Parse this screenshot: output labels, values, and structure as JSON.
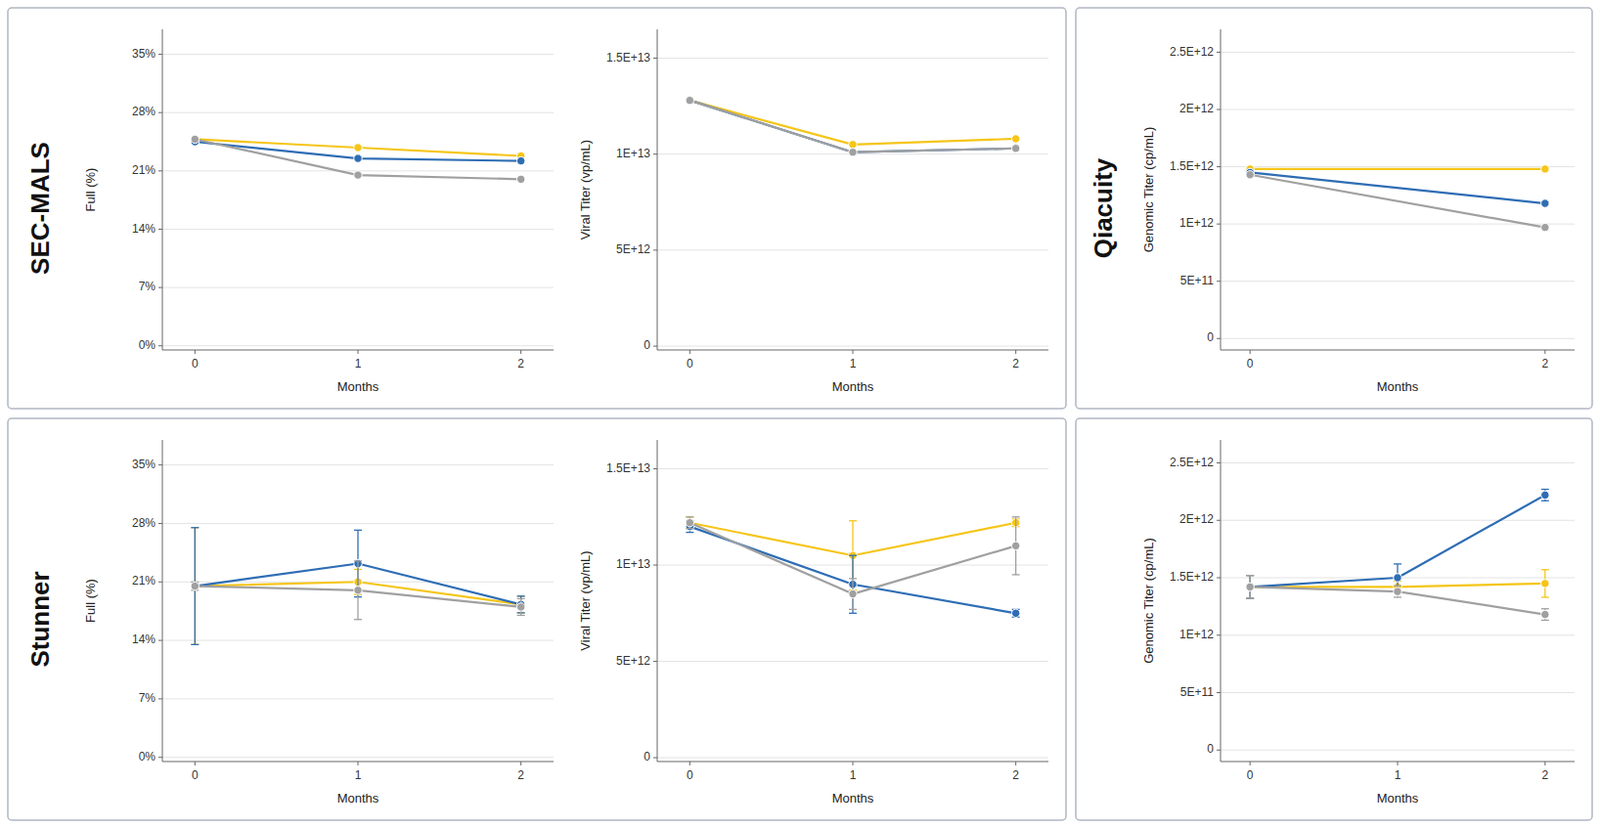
{
  "chart_data": [
    {
      "type": "line",
      "title": "SEC-MALS",
      "x_label": "Months",
      "y_label": "Full (%)",
      "x": [
        0,
        1,
        2
      ],
      "xlim": [
        -0.2,
        2.2
      ],
      "xticks": [
        0,
        1,
        2
      ],
      "ylim": [
        -0.005,
        0.38
      ],
      "yticks": [
        {
          "value": 0,
          "label": "0%"
        },
        {
          "value": 0.07,
          "label": "7%"
        },
        {
          "value": 0.14,
          "label": "14%"
        },
        {
          "value": 0.21,
          "label": "21%"
        },
        {
          "value": 0.28,
          "label": "28%"
        },
        {
          "value": 0.35,
          "label": "35%"
        }
      ],
      "grid": true,
      "marker": "circle",
      "series": [
        {
          "color": "#F5C518",
          "values": [
            0.248,
            0.238,
            0.228
          ]
        },
        {
          "color": "#2E6DB4",
          "values": [
            0.245,
            0.225,
            0.222
          ]
        },
        {
          "color": "#A0A0A0",
          "values": [
            0.248,
            0.205,
            0.2
          ]
        }
      ]
    },
    {
      "type": "line",
      "x_label": "Months",
      "y_label": "Viral Titer (vp/mL)",
      "x": [
        0,
        1,
        2
      ],
      "xlim": [
        -0.2,
        2.2
      ],
      "xticks": [
        0,
        1,
        2
      ],
      "ylim": [
        -200000000000.0,
        16500000000000.0
      ],
      "yticks": [
        0,
        {
          "value": 5000000000000.0,
          "label": "5E+12"
        },
        {
          "value": 10000000000000.0,
          "label": "1E+13"
        },
        {
          "value": 15000000000000.0,
          "label": "1.5E+13"
        }
      ],
      "grid": true,
      "marker": "circle",
      "series": [
        {
          "color": "#F5C518",
          "values": [
            12800000000000.0,
            10500000000000.0,
            10800000000000.0
          ]
        },
        {
          "color": "#2E6DB4",
          "values": [
            12800000000000.0,
            10100000000000.0,
            10300000000000.0
          ]
        },
        {
          "color": "#A0A0A0",
          "values": [
            12800000000000.0,
            10100000000000.0,
            10300000000000.0
          ]
        }
      ]
    },
    {
      "type": "line",
      "title": "Qiacuity",
      "x_label": "Months",
      "y_label": "Genomic Titer (cp/mL)",
      "x": [
        0,
        2
      ],
      "xlim": [
        -0.2,
        2.2
      ],
      "xticks": [
        0,
        2
      ],
      "ylim": [
        -100000000000.0,
        2700000000000.0
      ],
      "yticks": [
        0,
        {
          "value": 500000000000.0,
          "label": "5E+11"
        },
        {
          "value": 1000000000000.0,
          "label": "1E+12"
        },
        {
          "value": 1500000000000.0,
          "label": "1.5E+12"
        },
        {
          "value": 2000000000000.0,
          "label": "2E+12"
        },
        {
          "value": 2500000000000.0,
          "label": "2.5E+12"
        }
      ],
      "grid": true,
      "marker": "circle",
      "series": [
        {
          "color": "#F5C518",
          "values": [
            1480000000000.0,
            1480000000000.0
          ]
        },
        {
          "color": "#2E6DB4",
          "values": [
            1450000000000.0,
            1180000000000.0
          ]
        },
        {
          "color": "#A0A0A0",
          "values": [
            1430000000000.0,
            970000000000.0
          ]
        }
      ]
    },
    {
      "type": "line",
      "title": "Stunner",
      "x_label": "Months",
      "y_label": "Full (%)",
      "x": [
        0,
        1,
        2
      ],
      "xlim": [
        -0.2,
        2.2
      ],
      "xticks": [
        0,
        1,
        2
      ],
      "ylim": [
        -0.005,
        0.38
      ],
      "yticks": [
        {
          "value": 0,
          "label": "0%"
        },
        {
          "value": 0.07,
          "label": "7%"
        },
        {
          "value": 0.14,
          "label": "14%"
        },
        {
          "value": 0.21,
          "label": "21%"
        },
        {
          "value": 0.28,
          "label": "28%"
        },
        {
          "value": 0.35,
          "label": "35%"
        }
      ],
      "grid": true,
      "marker": "circle",
      "series": [
        {
          "color": "#F5C518",
          "values": [
            0.205,
            0.21,
            0.183
          ],
          "errors": [
            0.07,
            0.015,
            0.01
          ]
        },
        {
          "color": "#2E6DB4",
          "values": [
            0.205,
            0.232,
            0.183
          ],
          "errors": [
            0.07,
            0.04,
            0.01
          ]
        },
        {
          "color": "#A0A0A0",
          "values": [
            0.205,
            0.2,
            0.18
          ],
          "errors": [
            0.005,
            0.035,
            0.01
          ]
        }
      ]
    },
    {
      "type": "line",
      "x_label": "Months",
      "y_label": "Viral Titer (vp/mL)",
      "x": [
        0,
        1,
        2
      ],
      "xlim": [
        -0.2,
        2.2
      ],
      "xticks": [
        0,
        1,
        2
      ],
      "ylim": [
        -200000000000.0,
        16500000000000.0
      ],
      "yticks": [
        0,
        {
          "value": 5000000000000.0,
          "label": "5E+12"
        },
        {
          "value": 10000000000000.0,
          "label": "1E+13"
        },
        {
          "value": 15000000000000.0,
          "label": "1.5E+13"
        }
      ],
      "grid": true,
      "marker": "circle",
      "series": [
        {
          "color": "#F5C518",
          "values": [
            12200000000000.0,
            10500000000000.0,
            12200000000000.0
          ],
          "errors": [
            300000000000.0,
            1800000000000.0,
            200000000000.0
          ]
        },
        {
          "color": "#2E6DB4",
          "values": [
            12000000000000.0,
            9000000000000.0,
            7500000000000.0
          ],
          "errors": [
            300000000000.0,
            1500000000000.0,
            200000000000.0
          ]
        },
        {
          "color": "#A0A0A0",
          "values": [
            12200000000000.0,
            8500000000000.0,
            11000000000000.0
          ],
          "errors": [
            300000000000.0,
            800000000000.0,
            1500000000000.0
          ]
        }
      ]
    },
    {
      "type": "line",
      "x_label": "Months",
      "y_label": "Genomic Titer (cp/mL)",
      "x": [
        0,
        1,
        2
      ],
      "xlim": [
        -0.2,
        2.2
      ],
      "xticks": [
        0,
        1,
        2
      ],
      "ylim": [
        -100000000000.0,
        2700000000000.0
      ],
      "yticks": [
        0,
        {
          "value": 500000000000.0,
          "label": "5E+11"
        },
        {
          "value": 1000000000000.0,
          "label": "1E+12"
        },
        {
          "value": 1500000000000.0,
          "label": "1.5E+12"
        },
        {
          "value": 2000000000000.0,
          "label": "2E+12"
        },
        {
          "value": 2500000000000.0,
          "label": "2.5E+12"
        }
      ],
      "grid": true,
      "marker": "circle",
      "series": [
        {
          "color": "#F5C518",
          "values": [
            1420000000000.0,
            1420000000000.0,
            1450000000000.0
          ],
          "errors": [
            100000000000.0,
            50000000000.0,
            120000000000.0
          ]
        },
        {
          "color": "#2E6DB4",
          "values": [
            1420000000000.0,
            1500000000000.0,
            2220000000000.0
          ],
          "errors": [
            100000000000.0,
            120000000000.0,
            50000000000.0
          ]
        },
        {
          "color": "#A0A0A0",
          "values": [
            1420000000000.0,
            1380000000000.0,
            1180000000000.0
          ],
          "errors": [
            100000000000.0,
            50000000000.0,
            50000000000.0
          ]
        }
      ]
    }
  ]
}
